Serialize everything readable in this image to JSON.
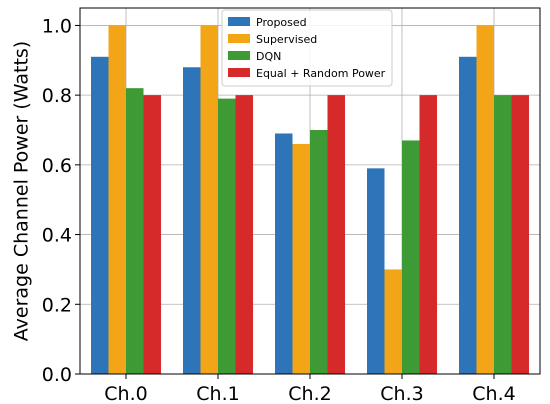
{
  "chart_data": {
    "type": "bar",
    "title": "",
    "xlabel": "",
    "ylabel": "Average Channel Power (Watts)",
    "categories": [
      "Ch.0",
      "Ch.1",
      "Ch.2",
      "Ch.3",
      "Ch.4"
    ],
    "series": [
      {
        "name": "Proposed",
        "color": "#2e74b8",
        "values": [
          0.91,
          0.88,
          0.69,
          0.59,
          0.91
        ]
      },
      {
        "name": "Supervised",
        "color": "#f2a516",
        "values": [
          1.0,
          1.0,
          0.66,
          0.3,
          1.0
        ]
      },
      {
        "name": "DQN",
        "color": "#3d9a35",
        "values": [
          0.82,
          0.79,
          0.7,
          0.67,
          0.8
        ]
      },
      {
        "name": "Equal + Random Power",
        "color": "#d62a2a",
        "values": [
          0.8,
          0.8,
          0.8,
          0.8,
          0.8
        ]
      }
    ],
    "ylim": [
      0,
      1.05
    ],
    "yticks": [
      "0.0",
      "0.2",
      "0.4",
      "0.6",
      "0.8",
      "1.0"
    ],
    "grid": true,
    "legend_position": "top-right"
  }
}
